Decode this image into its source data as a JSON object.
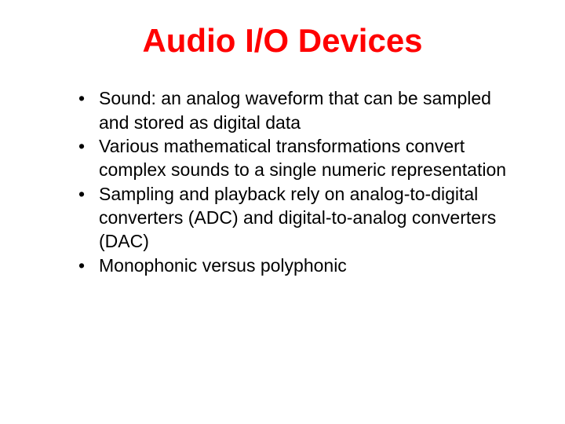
{
  "slide": {
    "title": "Audio I/O Devices",
    "title_color": "#ff0000",
    "title_fontsize": 42,
    "body_color": "#000000",
    "body_fontsize": 23,
    "bullets": [
      "Sound: an analog waveform that can be sampled and stored as digital data",
      "Various mathematical transformations convert complex sounds to a single numeric representation",
      "Sampling and playback rely on analog-to-digital converters (ADC) and digital-to-analog converters (DAC)",
      "Monophonic versus polyphonic"
    ],
    "background_color": "#ffffff"
  }
}
